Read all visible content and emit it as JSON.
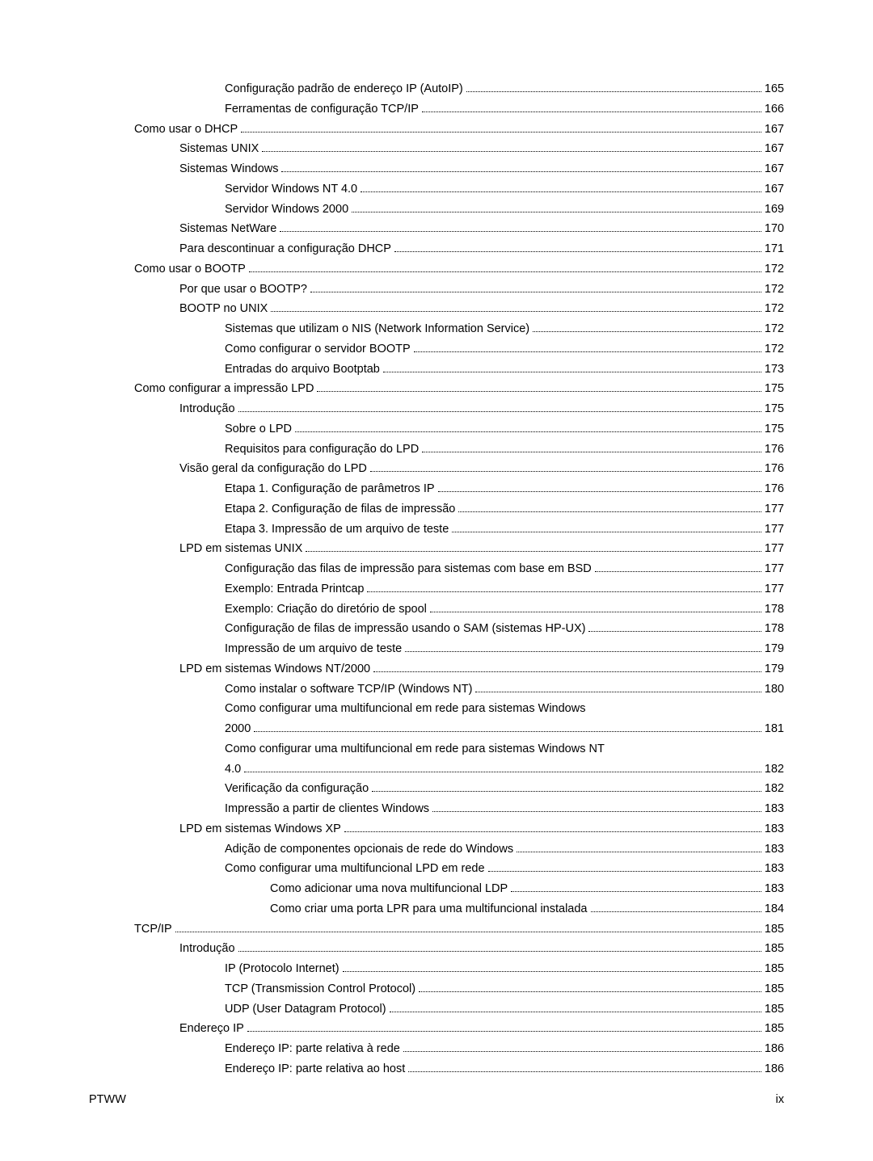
{
  "footer": {
    "left": "PTWW",
    "right": "ix"
  },
  "entries": [
    {
      "indent": 3,
      "label": "Configuração padrão de endereço IP (AutoIP)",
      "page": "165"
    },
    {
      "indent": 3,
      "label": "Ferramentas de configuração TCP/IP",
      "page": "166"
    },
    {
      "indent": 1,
      "label": "Como usar o DHCP",
      "page": "167"
    },
    {
      "indent": 2,
      "label": "Sistemas UNIX",
      "page": "167"
    },
    {
      "indent": 2,
      "label": "Sistemas Windows",
      "page": "167"
    },
    {
      "indent": 3,
      "label": "Servidor Windows NT 4.0",
      "page": "167"
    },
    {
      "indent": 3,
      "label": "Servidor Windows 2000",
      "page": "169"
    },
    {
      "indent": 2,
      "label": "Sistemas NetWare",
      "page": "170"
    },
    {
      "indent": 2,
      "label": "Para descontinuar a configuração DHCP",
      "page": "171"
    },
    {
      "indent": 1,
      "label": "Como usar o BOOTP",
      "page": "172"
    },
    {
      "indent": 2,
      "label": "Por que usar o BOOTP?",
      "page": "172"
    },
    {
      "indent": 2,
      "label": "BOOTP no UNIX",
      "page": "172"
    },
    {
      "indent": 3,
      "label": "Sistemas que utilizam o NIS (Network Information Service)",
      "page": "172"
    },
    {
      "indent": 3,
      "label": "Como configurar o servidor BOOTP",
      "page": "172"
    },
    {
      "indent": 3,
      "label": "Entradas do arquivo Bootptab",
      "page": "173"
    },
    {
      "indent": 1,
      "label": "Como configurar a impressão LPD",
      "page": "175"
    },
    {
      "indent": 2,
      "label": "Introdução",
      "page": "175"
    },
    {
      "indent": 3,
      "label": "Sobre o LPD",
      "page": "175"
    },
    {
      "indent": 3,
      "label": "Requisitos para configuração do LPD",
      "page": "176"
    },
    {
      "indent": 2,
      "label": "Visão geral da configuração do LPD",
      "page": "176"
    },
    {
      "indent": 3,
      "label": "Etapa 1. Configuração de parâmetros IP",
      "page": "176"
    },
    {
      "indent": 3,
      "label": "Etapa 2. Configuração de filas de impressão",
      "page": "177"
    },
    {
      "indent": 3,
      "label": "Etapa 3. Impressão de um arquivo de teste",
      "page": "177"
    },
    {
      "indent": 2,
      "label": "LPD em sistemas UNIX",
      "page": "177"
    },
    {
      "indent": 3,
      "label": "Configuração das filas de impressão para sistemas com base em BSD",
      "page": "177"
    },
    {
      "indent": 3,
      "label": "Exemplo: Entrada Printcap",
      "page": "177"
    },
    {
      "indent": 3,
      "label": "Exemplo: Criação do diretório de spool",
      "page": "178"
    },
    {
      "indent": 3,
      "label": "Configuração de filas de impressão usando o SAM (sistemas HP-UX)",
      "page": "178"
    },
    {
      "indent": 3,
      "label": "Impressão de um arquivo de teste",
      "page": "179"
    },
    {
      "indent": 2,
      "label": "LPD em sistemas Windows NT/2000",
      "page": "179"
    },
    {
      "indent": 3,
      "label": "Como instalar o software TCP/IP (Windows NT)",
      "page": "180"
    },
    {
      "indent": 3,
      "label": "Como configurar uma multifuncional em rede para sistemas Windows",
      "continuation": "2000",
      "page": "181"
    },
    {
      "indent": 3,
      "label": "Como configurar uma multifuncional em rede para sistemas Windows NT",
      "continuation": "4.0",
      "page": "182"
    },
    {
      "indent": 3,
      "label": "Verificação da configuração",
      "page": "182"
    },
    {
      "indent": 3,
      "label": "Impressão a partir de clientes Windows",
      "page": "183"
    },
    {
      "indent": 2,
      "label": "LPD em sistemas Windows XP",
      "page": "183"
    },
    {
      "indent": 3,
      "label": "Adição de componentes opcionais de rede do Windows",
      "page": "183"
    },
    {
      "indent": 3,
      "label": "Como configurar uma multifuncional LPD em rede",
      "page": "183"
    },
    {
      "indent": 4,
      "label": "Como adicionar uma nova multifuncional LDP",
      "page": "183"
    },
    {
      "indent": 4,
      "label": "Como criar uma porta LPR para uma multifuncional instalada",
      "page": "184"
    },
    {
      "indent": 1,
      "label": "TCP/IP",
      "page": "185"
    },
    {
      "indent": 2,
      "label": "Introdução",
      "page": "185"
    },
    {
      "indent": 3,
      "label": "IP (Protocolo Internet)",
      "page": "185"
    },
    {
      "indent": 3,
      "label": "TCP (Transmission Control Protocol)",
      "page": "185"
    },
    {
      "indent": 3,
      "label": "UDP (User Datagram Protocol)",
      "page": "185"
    },
    {
      "indent": 2,
      "label": "Endereço IP",
      "page": "185"
    },
    {
      "indent": 3,
      "label": "Endereço IP: parte relativa à rede",
      "page": "186"
    },
    {
      "indent": 3,
      "label": "Endereço IP: parte relativa ao host",
      "page": "186"
    }
  ]
}
